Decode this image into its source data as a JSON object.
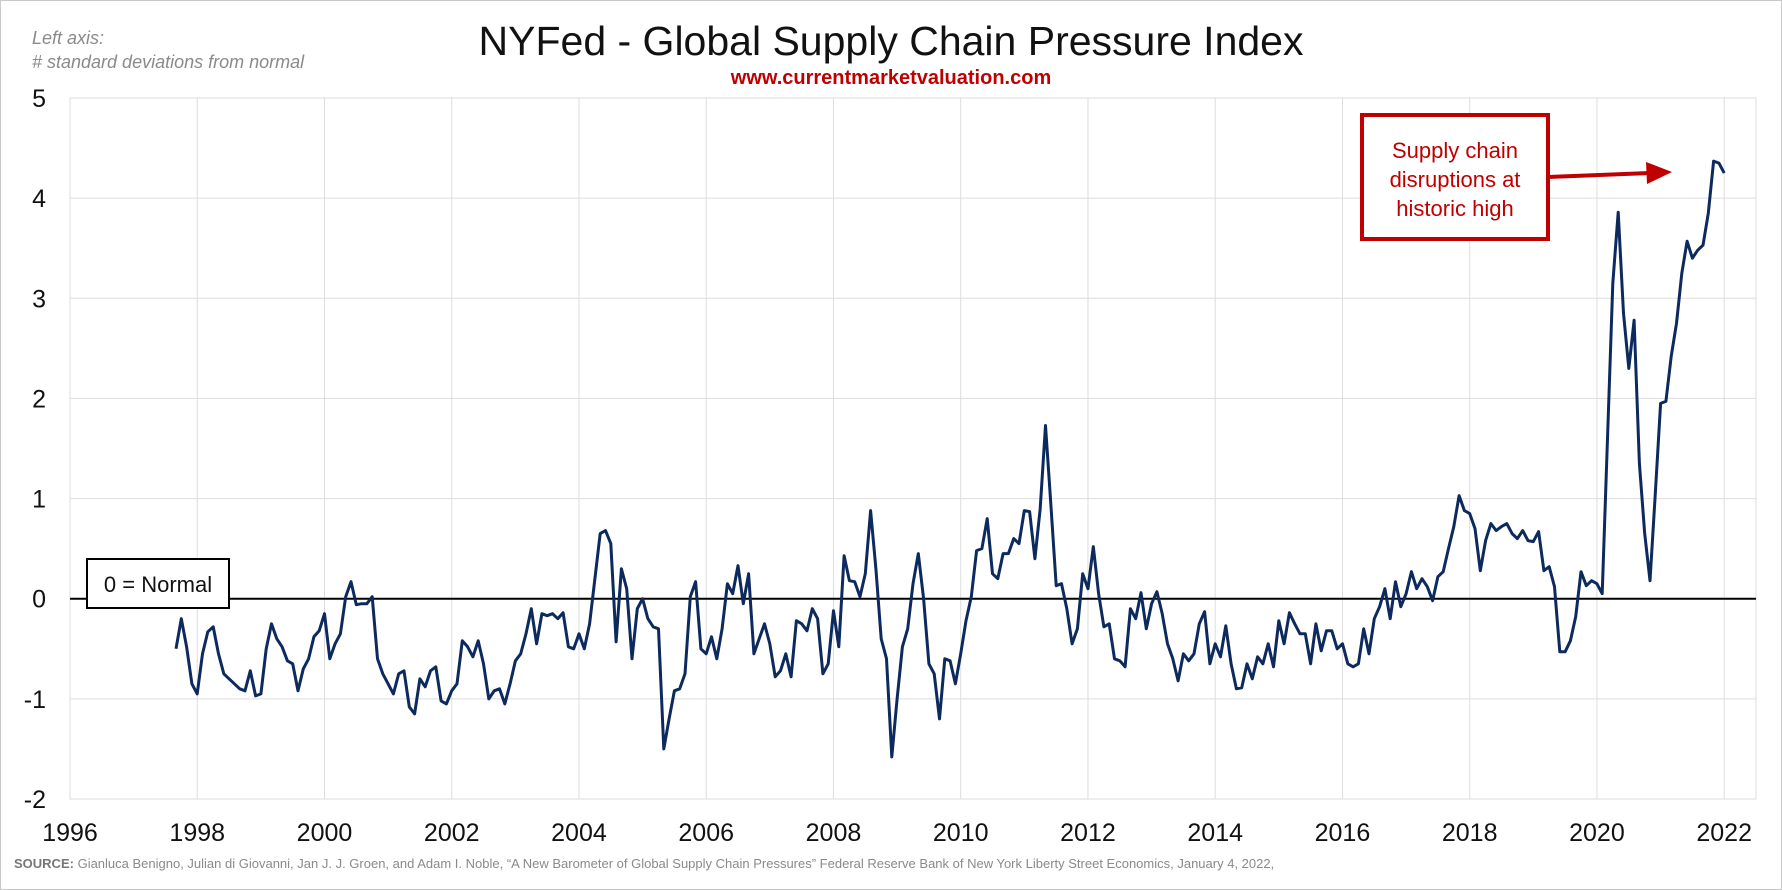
{
  "header": {
    "axis_note_line1": "Left axis:",
    "axis_note_line2": "# standard deviations from normal",
    "title": "NYFed - Global Supply Chain Pressure Index",
    "subtitle": "www.currentmarketvaluation.com"
  },
  "footer": {
    "source_label": "SOURCE:",
    "source_text": "Gianluca Benigno, Julian di Giovanni, Jan J. J. Groen, and Adam I. Noble, “A New Barometer of Global Supply Chain Pressures” Federal Reserve Bank of New York Liberty Street Economics, January 4, 2022,"
  },
  "colors": {
    "line": "#0d2a5e",
    "annotation": "#c00000",
    "grid": "#dddddd",
    "zero_line": "#000000"
  },
  "chart_data": {
    "type": "line",
    "title": "NYFed - Global Supply Chain Pressure Index",
    "xlabel": "",
    "ylabel": "# standard deviations from normal",
    "xlim": [
      1996,
      2022.5
    ],
    "ylim": [
      -2,
      5
    ],
    "x_ticks": [
      1996,
      1998,
      2000,
      2002,
      2004,
      2006,
      2008,
      2010,
      2012,
      2014,
      2016,
      2018,
      2020,
      2022
    ],
    "y_ticks": [
      5,
      4,
      3,
      2,
      1,
      0,
      -1,
      -2
    ],
    "grid": true,
    "reference_line": {
      "y": 0,
      "label": "0 = Normal"
    },
    "annotation": {
      "lines": [
        "Supply chain",
        "disruptions at",
        "historic high"
      ],
      "points_to": [
        2021.75,
        4.3
      ]
    },
    "series": [
      {
        "start": "1997-09",
        "frequency": "monthly",
        "values": [
          -0.5,
          -0.2,
          -0.48,
          -0.85,
          -0.95,
          -0.55,
          -0.33,
          -0.28,
          -0.55,
          -0.75,
          -0.8,
          -0.85,
          -0.9,
          -0.92,
          -0.72,
          -0.97,
          -0.95,
          -0.5,
          -0.25,
          -0.4,
          -0.48,
          -0.62,
          -0.65,
          -0.92,
          -0.7,
          -0.6,
          -0.38,
          -0.32,
          -0.15,
          -0.6,
          -0.45,
          -0.35,
          0.02,
          0.17,
          -0.06,
          -0.05,
          -0.05,
          0.02,
          -0.6,
          -0.75,
          -0.85,
          -0.95,
          -0.75,
          -0.72,
          -1.08,
          -1.15,
          -0.8,
          -0.88,
          -0.72,
          -0.68,
          -1.02,
          -1.05,
          -0.92,
          -0.85,
          -0.42,
          -0.48,
          -0.58,
          -0.42,
          -0.65,
          -1.0,
          -0.92,
          -0.9,
          -1.05,
          -0.85,
          -0.62,
          -0.55,
          -0.35,
          -0.1,
          -0.45,
          -0.15,
          -0.17,
          -0.15,
          -0.2,
          -0.14,
          -0.48,
          -0.5,
          -0.35,
          -0.5,
          -0.25,
          0.2,
          0.65,
          0.68,
          0.55,
          -0.43,
          0.3,
          0.1,
          -0.6,
          -0.1,
          0.0,
          -0.2,
          -0.28,
          -0.3,
          -1.5,
          -1.2,
          -0.92,
          -0.9,
          -0.75,
          0.02,
          0.17,
          -0.5,
          -0.55,
          -0.38,
          -0.6,
          -0.3,
          0.15,
          0.05,
          0.33,
          -0.05,
          0.25,
          -0.55,
          -0.4,
          -0.25,
          -0.45,
          -0.78,
          -0.72,
          -0.55,
          -0.78,
          -0.22,
          -0.25,
          -0.32,
          -0.1,
          -0.2,
          -0.75,
          -0.65,
          -0.12,
          -0.48,
          0.43,
          0.18,
          0.17,
          0.02,
          0.25,
          0.88,
          0.3,
          -0.4,
          -0.6,
          -1.58,
          -1.0,
          -0.48,
          -0.3,
          0.15,
          0.45,
          0.0,
          -0.65,
          -0.75,
          -1.2,
          -0.6,
          -0.62,
          -0.85,
          -0.55,
          -0.22,
          0.02,
          0.48,
          0.5,
          0.8,
          0.25,
          0.2,
          0.45,
          0.45,
          0.6,
          0.55,
          0.88,
          0.87,
          0.4,
          0.9,
          1.73,
          0.95,
          0.13,
          0.15,
          -0.1,
          -0.45,
          -0.3,
          0.25,
          0.1,
          0.52,
          0.05,
          -0.28,
          -0.25,
          -0.6,
          -0.62,
          -0.68,
          -0.1,
          -0.2,
          0.06,
          -0.3,
          -0.05,
          0.07,
          -0.15,
          -0.45,
          -0.6,
          -0.82,
          -0.55,
          -0.62,
          -0.55,
          -0.25,
          -0.13,
          -0.65,
          -0.45,
          -0.58,
          -0.27,
          -0.65,
          -0.9,
          -0.89,
          -0.65,
          -0.8,
          -0.58,
          -0.65,
          -0.45,
          -0.68,
          -0.22,
          -0.45,
          -0.14,
          -0.25,
          -0.35,
          -0.35,
          -0.65,
          -0.25,
          -0.52,
          -0.32,
          -0.32,
          -0.5,
          -0.45,
          -0.65,
          -0.68,
          -0.65,
          -0.3,
          -0.55,
          -0.2,
          -0.08,
          0.1,
          -0.2,
          0.17,
          -0.08,
          0.05,
          0.27,
          0.1,
          0.2,
          0.12,
          -0.02,
          0.22,
          0.27,
          0.5,
          0.72,
          1.03,
          0.88,
          0.85,
          0.7,
          0.28,
          0.58,
          0.75,
          0.68,
          0.72,
          0.75,
          0.65,
          0.6,
          0.68,
          0.58,
          0.57,
          0.67,
          0.28,
          0.32,
          0.12,
          -0.53,
          -0.53,
          -0.42,
          -0.18,
          0.27,
          0.13,
          0.18,
          0.15,
          0.05,
          1.6,
          3.15,
          3.86,
          2.85,
          2.3,
          2.78,
          1.35,
          0.65,
          0.18,
          1.05,
          1.95,
          1.97,
          2.42,
          2.75,
          3.25,
          3.57,
          3.4,
          3.48,
          3.53,
          3.85,
          4.37,
          4.35,
          4.25
        ]
      }
    ]
  }
}
